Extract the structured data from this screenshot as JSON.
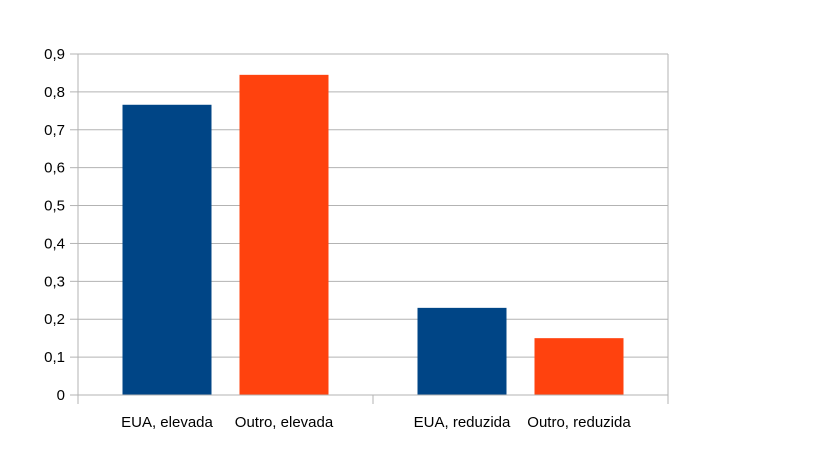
{
  "chart_data": {
    "type": "bar",
    "categories": [
      "EUA, elevada",
      "Outro, elevada",
      "EUA, reduzida",
      "Outro, reduzida"
    ],
    "groups": [
      {
        "bars": [
          0,
          1
        ]
      },
      {
        "bars": [
          2,
          3
        ]
      }
    ],
    "values": [
      0.766,
      0.845,
      0.23,
      0.15
    ],
    "colors": [
      "#004586",
      "#ff420e",
      "#004586",
      "#ff420e"
    ],
    "yticks": [
      "0",
      "0,1",
      "0,2",
      "0,3",
      "0,4",
      "0,5",
      "0,6",
      "0,7",
      "0,8",
      "0,9"
    ],
    "ylim": [
      0,
      0.9
    ],
    "grid": true,
    "legend": "none"
  }
}
